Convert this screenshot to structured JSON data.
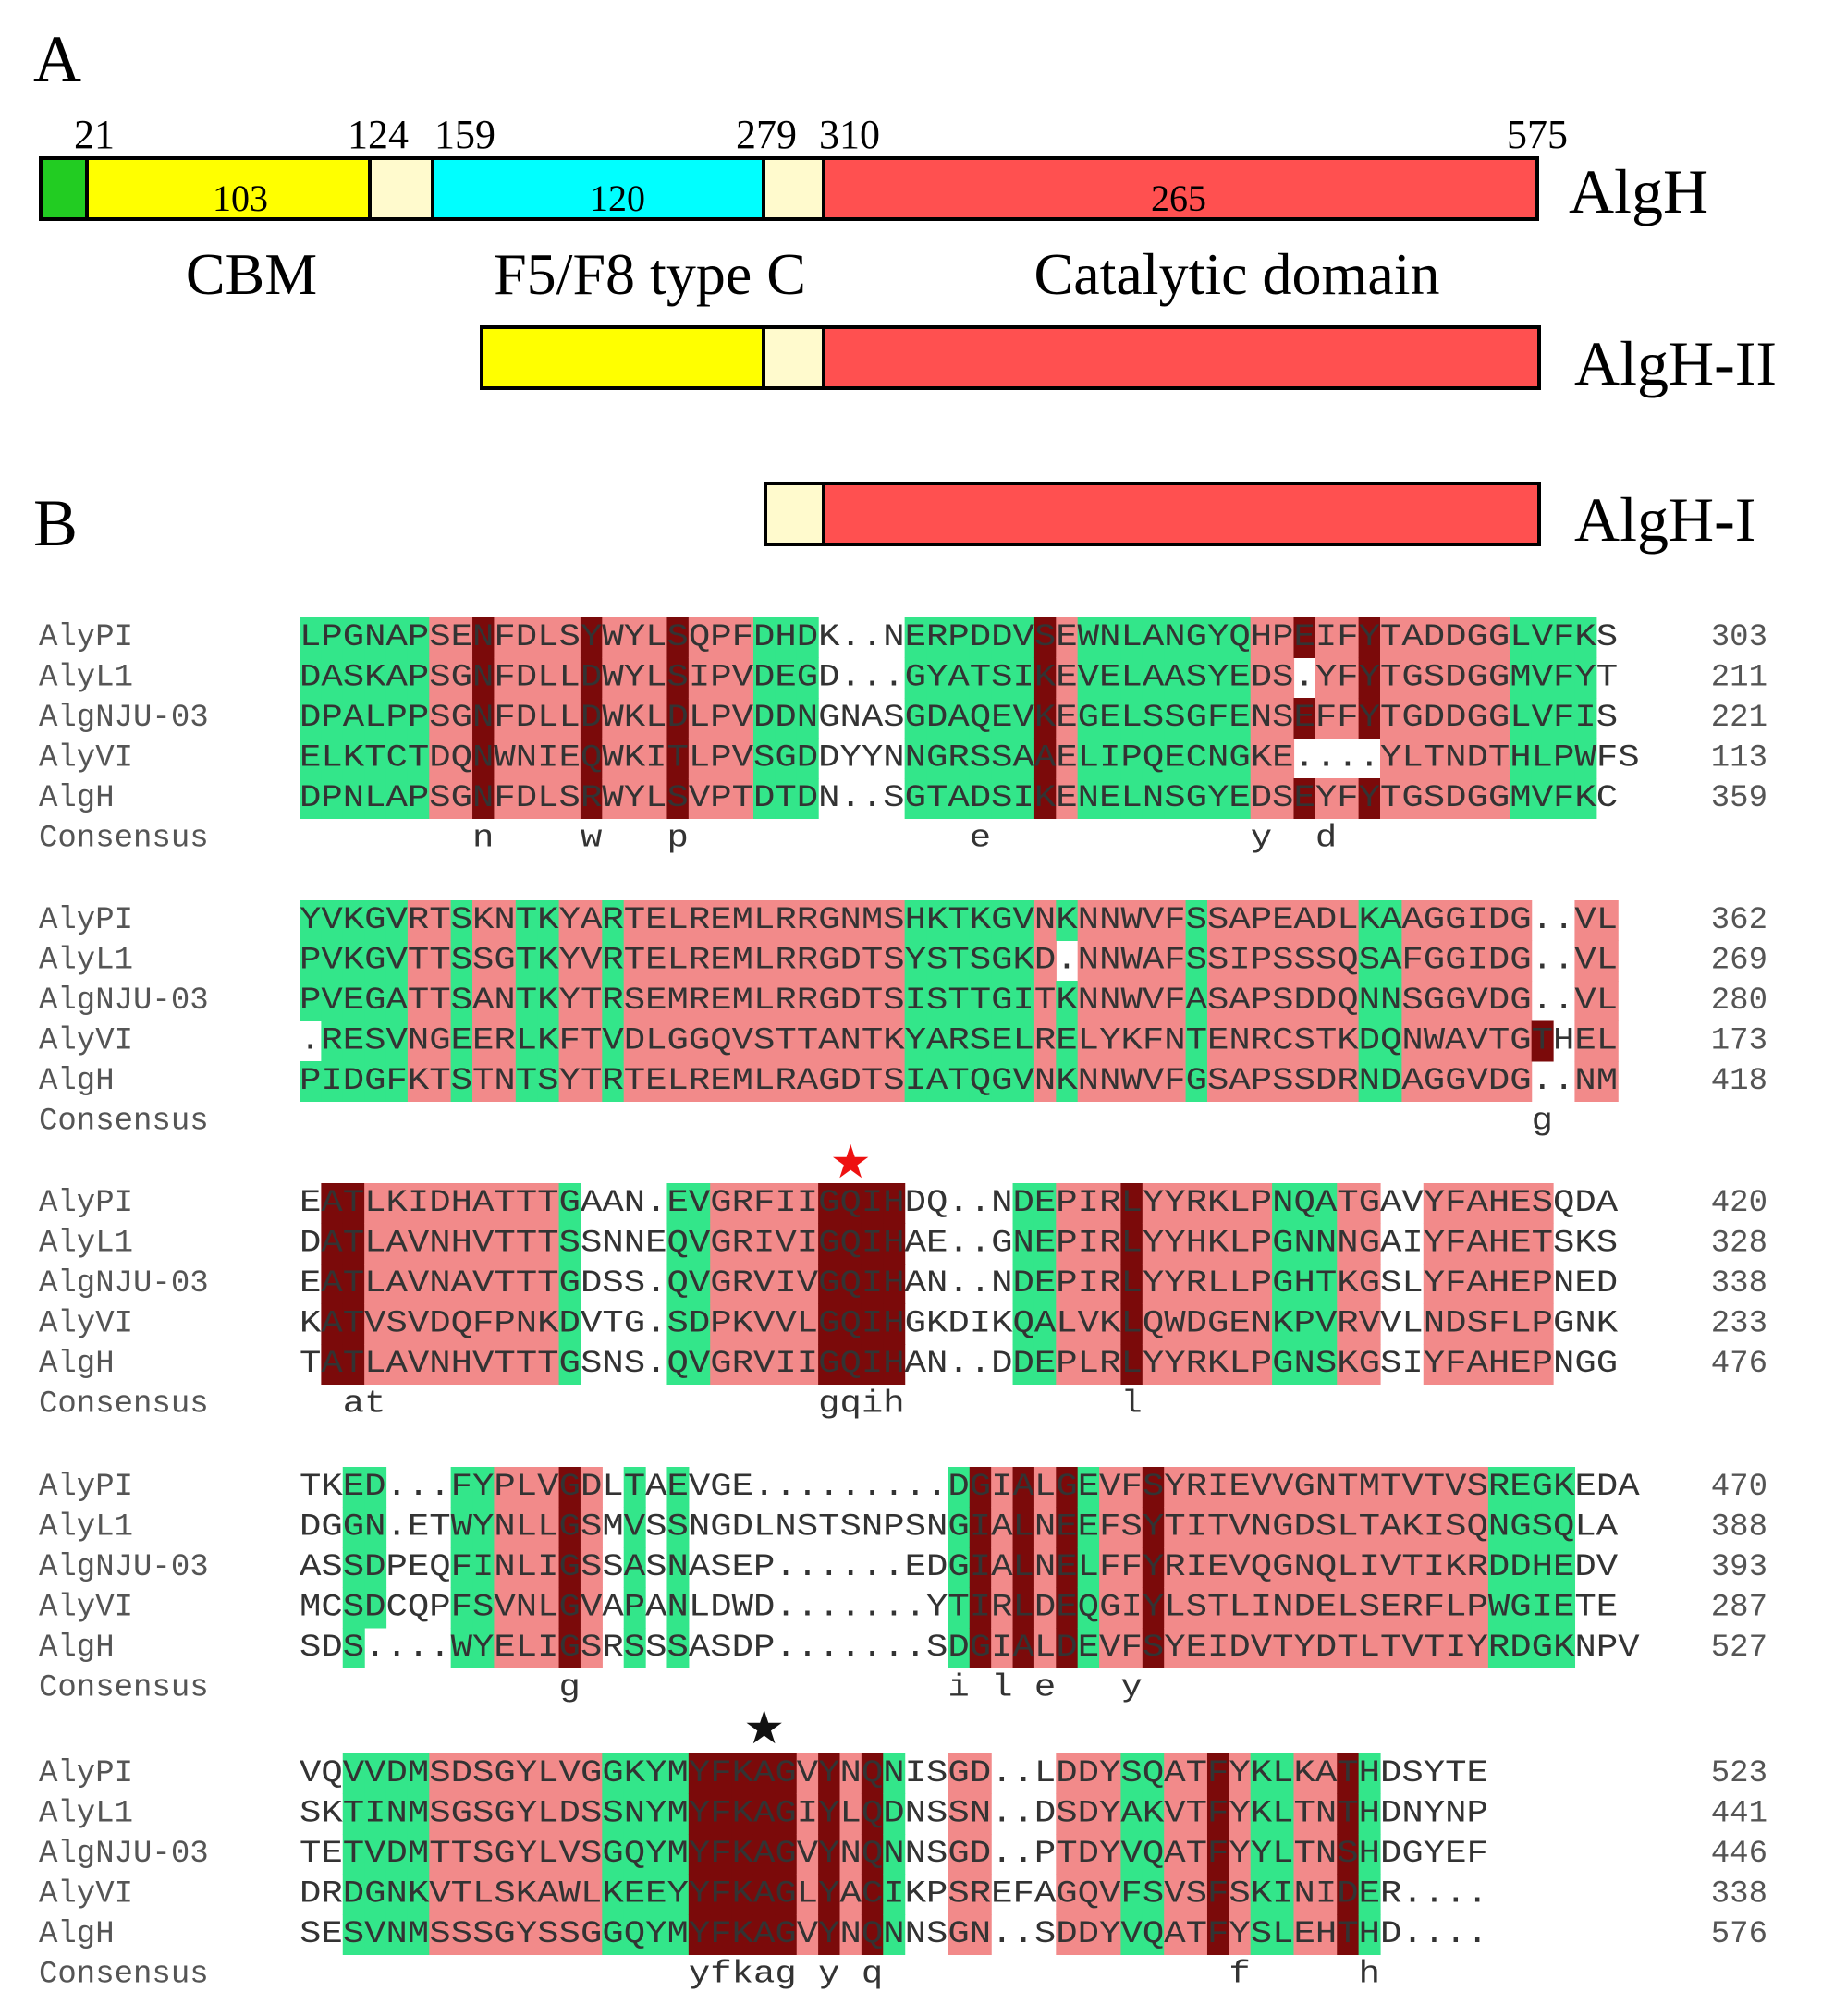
{
  "panel_a": {
    "label": "A",
    "colors": {
      "signal": "#22cc22",
      "cbm": "#ffff00",
      "linker": "#fffacd",
      "f5f8": "#00ffff",
      "catalytic": "#ff5050",
      "outline": "#000000"
    },
    "positions": [
      "21",
      "124",
      "159",
      "279",
      "310",
      "575"
    ],
    "segment_lengths": [
      "103",
      "120",
      "265"
    ],
    "domain_labels": [
      "CBM",
      "F5/F8 type C",
      "Catalytic domain"
    ],
    "constructs": [
      "AlgH",
      "AlgH-II",
      "AlgH-I"
    ]
  },
  "panel_b": {
    "label": "B",
    "colors": {
      "identical": "#7b0a0a",
      "high": "#f28a8a",
      "similar": "#33e68a",
      "text": "#333333",
      "label": "#555555"
    },
    "star_red_color": "#ee1111",
    "star_black_color": "#111111",
    "blocks": [
      {
        "rows": [
          {
            "name": "AlyPI",
            "seq": "LPGNAPSENFDLSYWYLSQPFDHDK..NERPDDVSEWNLANGYQHPEIFYTADDGGLVFKS",
            "num": "303"
          },
          {
            "name": "AlyL1",
            "seq": "DASKAPSGNFDLLDWYLSIPVDEGD...GYATSIKEVELAASYEDS.YFYTGSDGGMVFYT",
            "num": "211"
          },
          {
            "name": "AlgNJU-03",
            "seq": "DPALPPSGNFDLLDWKLDLPVDDNGNASGDAQEVKEGELSSGFENSEFFYTGDDGGLVFIS",
            "num": "221"
          },
          {
            "name": "AlyVI",
            "seq": "ELKTCTDQNWNIEQWKITLPVSGDDYYNNGRSSAAELIPQECNGKE....YLTNDTHLPWFS",
            "num": "113"
          },
          {
            "name": "AlgH",
            "seq": "DPNLAPSGNFDLSRWYLSVPTDTDN..SGTADSIKENELNSGYEDSEYFYTGSDGGMVFKC",
            "num": "359"
          }
        ],
        "consensus": "        n    w   p             e            y  d       ",
        "id_cols": [
          8,
          13,
          17,
          34,
          46,
          49
        ],
        "hi_cols": [
          6,
          7,
          9,
          10,
          11,
          12,
          14,
          15,
          16,
          18,
          19,
          20,
          35,
          44,
          45,
          47,
          48,
          50,
          51,
          52,
          53,
          54,
          55
        ],
        "sim_cols": [
          0,
          1,
          2,
          3,
          4,
          5,
          21,
          22,
          23,
          28,
          29,
          30,
          31,
          32,
          33,
          36,
          37,
          38,
          39,
          40,
          41,
          42,
          43,
          56,
          57,
          58,
          59
        ]
      },
      {
        "rows": [
          {
            "name": "AlyPI",
            "seq": "YVKGVRTSKNTKYARTELREMLRRGNMSHKTKGVNKNNWVFSSAPEADLKAAGGIDG..VL",
            "num": "362"
          },
          {
            "name": "AlyL1",
            "seq": "PVKGVTTSSGTKYVRTELREMLRRGDTSYSTSGKD.NNWAFSSIPSSSQSAFGGIDG..VL",
            "num": "269"
          },
          {
            "name": "AlgNJU-03",
            "seq": "PVEGATTSANTKYTRSEMREMLRRGDTSISTTGITKNNWVFASAPSDDQNNSGGVDG..VL",
            "num": "280"
          },
          {
            "name": "AlyVI",
            "seq": ".RESVNGEERLKFTVDLGGQVSTTANTKYARSELRELYKFNTENRCSTKDQNWAVTGTHEL",
            "num": "173"
          },
          {
            "name": "AlgH",
            "seq": "PIDGFKTSTNTSYTRTELREMLRAGDTSIATQGVNKNNWVFGSAPSSDRNDAGGVDG..NM",
            "num": "418"
          }
        ],
        "consensus": "                                                         g",
        "id_cols": [
          57
        ],
        "hi_cols": [
          5,
          6,
          8,
          9,
          12,
          13,
          15,
          16,
          17,
          18,
          19,
          20,
          21,
          22,
          23,
          24,
          25,
          26,
          27,
          34,
          36,
          37,
          38,
          39,
          40,
          42,
          43,
          44,
          45,
          46,
          47,
          48,
          51,
          52,
          53,
          54,
          55,
          56,
          59,
          60
        ],
        "sim_cols": [
          0,
          1,
          2,
          3,
          4,
          7,
          10,
          11,
          14,
          28,
          29,
          30,
          31,
          32,
          33,
          35,
          41,
          49,
          50
        ]
      },
      {
        "rows": [
          {
            "name": "AlyPI",
            "seq": "EATLKIDHATTTGAAN.EVGRFIIGQIHDQ..NDEPIRLYYRKLPNQATGAVYFAHESQDA",
            "num": "420"
          },
          {
            "name": "AlyL1",
            "seq": "DATLAVNHVTTTSSNNEQVGRIVIGQIHAE..GNEPIRLYYHKLPGNNNGAIYFAHETSKS",
            "num": "328"
          },
          {
            "name": "AlgNJU-03",
            "seq": "EATLAVNAVTTTGDSS.QVGRVIVGQIHAN..NDEPIRLYYRLLPGHTKGSLYFAHEPNED",
            "num": "338"
          },
          {
            "name": "AlyVI",
            "seq": "KATVSVDQFPNKDVTG.SDPKVVLGQIHGKDIKQALVKLQWDGENKPVRVVLNDSFLPGNK",
            "num": "233"
          },
          {
            "name": "AlgH",
            "seq": "TATLAVNHVTTTGSNS.QVGRVIIGQIHAN..DDEPLRLYYRKLPGNSKGSIYFAHEPNGG",
            "num": "476"
          }
        ],
        "consensus": "  at                    gqih          l                     ",
        "id_cols": [
          1,
          2,
          24,
          25,
          26,
          27,
          38
        ],
        "hi_cols": [
          3,
          4,
          5,
          6,
          7,
          8,
          9,
          10,
          11,
          19,
          20,
          21,
          22,
          23,
          35,
          36,
          37,
          39,
          40,
          41,
          42,
          43,
          44,
          48,
          49,
          52,
          53,
          54,
          55,
          56,
          57
        ],
        "sim_cols": [
          12,
          17,
          18,
          33,
          34,
          45,
          46,
          47
        ]
      },
      {
        "rows": [
          {
            "name": "AlyPI",
            "seq": "TKED...FYPLVGDLTAEVGE.........DGIALGEVFSYRIEVVGNTMTVTVSREGKEDA",
            "num": "470"
          },
          {
            "name": "AlyL1",
            "seq": "DGGN.ETWYNLLGSMVSSNGDLNSTSNPSNGIALNEEFSYTITVNGDSLTAKISQNGSQLA",
            "num": "388"
          },
          {
            "name": "AlgNJU-03",
            "seq": "ASSDPEQFINLIGSSASNASEP......EDGIALNELFFYRIEVQGNQLIVTIKRDDHEDV",
            "num": "393"
          },
          {
            "name": "AlyVI",
            "seq": "MCSDCQPFSVNLGVAPANLDWD.......YTIRLDEQGIYLSTLINDELSERFLPWGIETE",
            "num": "287"
          },
          {
            "name": "AlgH",
            "seq": "SDS....WYELIGSRSSSASDP.......SDGIALDEVFSYEIDVTYDTLTVTIYRDGKNPV",
            "num": "527"
          }
        ],
        "consensus": "            g                 i l e   y                     ",
        "id_cols": [
          12,
          31,
          33,
          35,
          39
        ],
        "hi_cols": [
          9,
          10,
          11,
          13,
          32,
          34,
          37,
          38,
          40,
          41,
          42,
          43,
          44,
          45,
          46,
          47,
          48,
          49,
          50,
          51,
          52,
          53,
          54
        ],
        "sim_cols": [
          2,
          3,
          7,
          8,
          15,
          17,
          30,
          36,
          55,
          56,
          57,
          58
        ]
      },
      {
        "rows": [
          {
            "name": "AlyPI",
            "seq": "VQVVDMSDSGYLVGGKYMYFKAGVYNQNISGD..LDDYSQATFYKLKATHDSYTE",
            "num": "523"
          },
          {
            "name": "AlyL1",
            "seq": "SKTINMSGSGYLDSSNYMYFKAGIYLQDNSSN..DSDYAKVTFYKLTNTHDNYNP",
            "num": "441"
          },
          {
            "name": "AlgNJU-03",
            "seq": "TETVDMTTSGYLVSGQYMYFKAGVYNQNNSGD..PTDYVQATFYYLTNSHDGYEF",
            "num": "446"
          },
          {
            "name": "AlyVI",
            "seq": "DRDGNKVTLSKAWLKEEYYFKAGLYACIKPSREFAGQVFSVSFSKINIDER....",
            "num": "338"
          },
          {
            "name": "AlgH",
            "seq": "SESVNMSSSGYSSGGQYMYFKAGVYNQNNSGN..SDDYVQATFYSLEHTHD....",
            "num": "576"
          }
        ],
        "consensus": "                  yfkag y q                f     h      ",
        "id_cols": [
          18,
          19,
          20,
          21,
          22,
          24,
          26,
          42,
          48
        ],
        "hi_cols": [
          6,
          7,
          8,
          9,
          10,
          11,
          12,
          13,
          23,
          25,
          30,
          31,
          35,
          36,
          37,
          40,
          41,
          43,
          46,
          47
        ],
        "sim_cols": [
          2,
          3,
          4,
          5,
          14,
          15,
          16,
          17,
          27,
          38,
          39,
          44,
          45,
          49
        ]
      }
    ]
  }
}
